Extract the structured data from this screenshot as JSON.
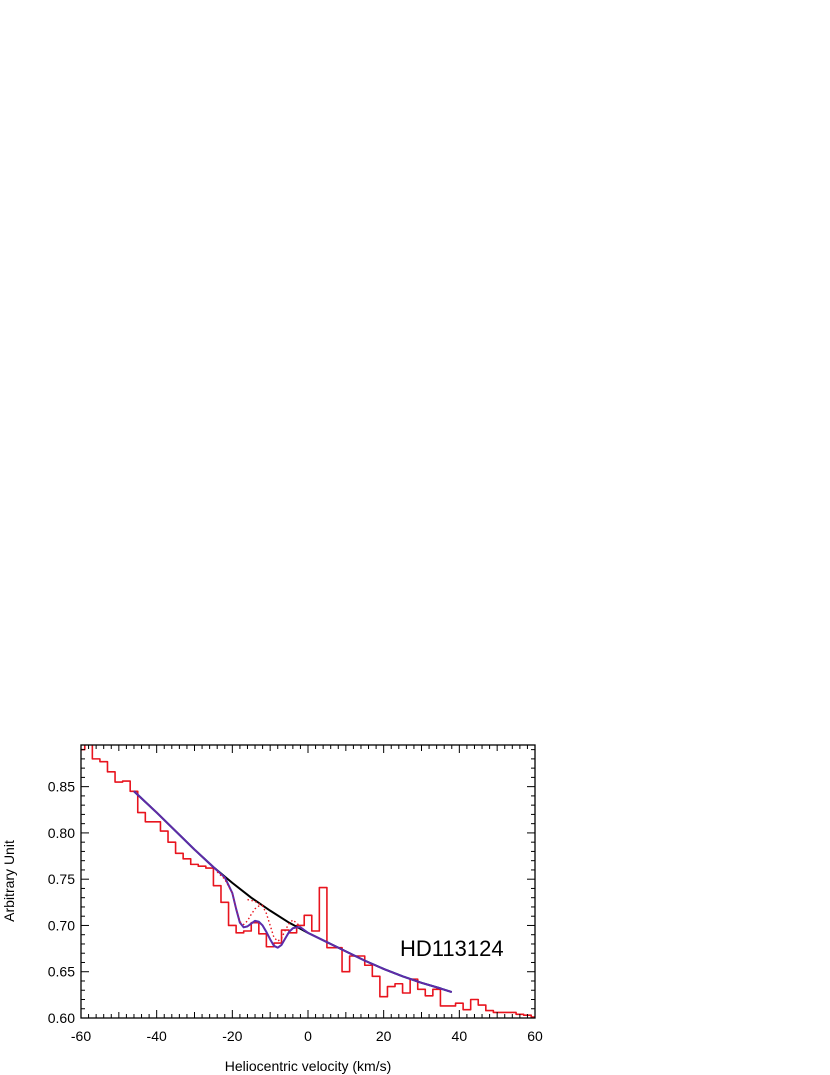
{
  "chart_data": {
    "type": "line",
    "title": "",
    "xlabel": "Heliocentric velocity (km/s)",
    "ylabel": "Arbitrary Unit",
    "annotation": "HD113124",
    "xlim": [
      -60,
      60
    ],
    "ylim": [
      0.6,
      0.895
    ],
    "x_ticks": [
      -60,
      -40,
      -20,
      0,
      20,
      40,
      60
    ],
    "x_tick_labels": [
      "-60",
      "-40",
      "-20",
      "0",
      "20",
      "40",
      "60"
    ],
    "y_ticks": [
      0.6,
      0.65,
      0.7,
      0.75,
      0.8,
      0.85
    ],
    "y_tick_labels": [
      "0.60",
      "0.65",
      "0.70",
      "0.75",
      "0.80",
      "0.85"
    ],
    "grid": false,
    "colors": {
      "observed": "#e8141e",
      "continuum": "#000000",
      "fit": "#1f3fd6",
      "components": "#e8141e",
      "fit_overlay": "#8a1f8a"
    },
    "series": [
      {
        "style": "step",
        "color": "#e8141e",
        "x": [
          -60,
          -58,
          -56,
          -54,
          -52,
          -50,
          -48,
          -46,
          -44,
          -42,
          -40,
          -38,
          -36,
          -34,
          -32,
          -30,
          -28,
          -26,
          -24,
          -22,
          -20,
          -18,
          -16,
          -14,
          -12,
          -10,
          -8,
          -6,
          -4,
          -2,
          0,
          2,
          4,
          6,
          8,
          10,
          12,
          14,
          16,
          18,
          20,
          22,
          24,
          26,
          28,
          30,
          32,
          34,
          36,
          38,
          40,
          42,
          44,
          46,
          48,
          50,
          52,
          54,
          56,
          58,
          60
        ],
        "y": [
          0.89,
          0.896,
          0.88,
          0.877,
          0.866,
          0.855,
          0.856,
          0.845,
          0.822,
          0.812,
          0.812,
          0.802,
          0.79,
          0.778,
          0.772,
          0.766,
          0.764,
          0.762,
          0.743,
          0.725,
          0.7,
          0.692,
          0.694,
          0.703,
          0.691,
          0.677,
          0.681,
          0.695,
          0.692,
          0.7,
          0.711,
          0.694,
          0.741,
          0.676,
          0.676,
          0.65,
          0.667,
          0.667,
          0.657,
          0.645,
          0.623,
          0.634,
          0.637,
          0.627,
          0.642,
          0.631,
          0.624,
          0.631,
          0.613,
          0.613,
          0.616,
          0.609,
          0.62,
          0.614,
          0.608,
          0.606,
          0.606,
          0.606,
          0.604,
          0.603,
          0.601
        ]
      },
      {
        "style": "solid",
        "color": "#000000",
        "x": [
          -46,
          -40,
          -35,
          -30,
          -25,
          -20,
          -15,
          -10,
          -5,
          0,
          5,
          10,
          15,
          20,
          25,
          30,
          35,
          38
        ],
        "y": [
          0.845,
          0.822,
          0.802,
          0.782,
          0.763,
          0.746,
          0.73,
          0.716,
          0.703,
          0.692,
          0.682,
          0.672,
          0.662,
          0.653,
          0.645,
          0.638,
          0.632,
          0.628
        ]
      },
      {
        "style": "solid",
        "color": "#1f3fd6",
        "x": [
          -46,
          -40,
          -35,
          -30,
          -25,
          -22,
          -20,
          -19,
          -18,
          -17,
          -16,
          -15,
          -14,
          -13,
          -12,
          -11,
          -10,
          -9,
          -8,
          -7,
          -6,
          -5,
          -4,
          -3,
          -2,
          0,
          5,
          10,
          15,
          20,
          25,
          30,
          35,
          38
        ],
        "y": [
          0.845,
          0.822,
          0.802,
          0.782,
          0.763,
          0.752,
          0.735,
          0.718,
          0.703,
          0.698,
          0.699,
          0.702,
          0.705,
          0.704,
          0.7,
          0.693,
          0.685,
          0.678,
          0.676,
          0.679,
          0.686,
          0.693,
          0.697,
          0.698,
          0.698,
          0.692,
          0.682,
          0.672,
          0.662,
          0.653,
          0.645,
          0.638,
          0.632,
          0.628
        ]
      },
      {
        "style": "dotted",
        "color": "#e8141e",
        "x": [
          -24,
          -22,
          -20,
          -19,
          -18,
          -17,
          -16,
          -15,
          -14,
          -13,
          -12
        ],
        "y": [
          0.758,
          0.75,
          0.735,
          0.718,
          0.704,
          0.701,
          0.705,
          0.712,
          0.718,
          0.721,
          0.722
        ]
      },
      {
        "style": "dotted",
        "color": "#e8141e",
        "x": [
          -16,
          -14,
          -12,
          -11,
          -10,
          -9,
          -8,
          -7,
          -6,
          -5,
          -4,
          -2
        ],
        "y": [
          0.728,
          0.726,
          0.721,
          0.713,
          0.7,
          0.687,
          0.683,
          0.686,
          0.695,
          0.702,
          0.706,
          0.699
        ]
      },
      {
        "style": "solid",
        "color": "#8a1f8a",
        "x": [
          -46,
          -40,
          -35,
          -30,
          -25,
          -22,
          -20,
          -19,
          -18,
          -17,
          -16,
          -15,
          -14,
          -13,
          -12,
          -11,
          -10,
          -9,
          -8,
          -7,
          -6,
          -5,
          -4,
          -3,
          -2,
          0,
          5,
          10,
          15,
          20,
          25,
          30,
          35,
          38
        ],
        "y": [
          0.845,
          0.822,
          0.802,
          0.782,
          0.763,
          0.752,
          0.735,
          0.718,
          0.703,
          0.698,
          0.699,
          0.702,
          0.705,
          0.704,
          0.7,
          0.693,
          0.685,
          0.678,
          0.676,
          0.679,
          0.686,
          0.693,
          0.697,
          0.698,
          0.698,
          0.692,
          0.682,
          0.672,
          0.662,
          0.653,
          0.645,
          0.638,
          0.632,
          0.628
        ]
      }
    ]
  }
}
